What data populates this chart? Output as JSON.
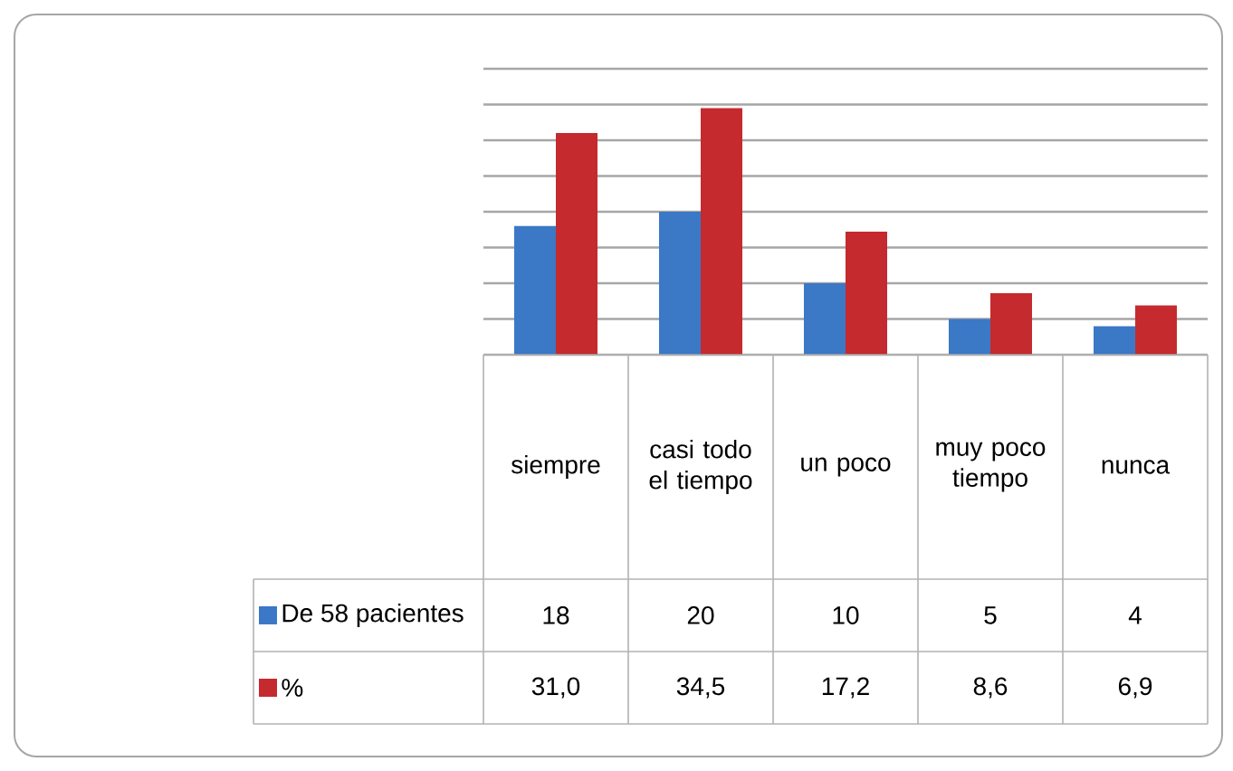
{
  "chart_data": {
    "type": "bar",
    "categories": [
      "siempre",
      "casi todo el tiempo",
      "un poco",
      "muy poco tiempo",
      "nunca"
    ],
    "series": [
      {
        "name": "De 58 pacientes",
        "color": "#3b78c6",
        "values": [
          18,
          20,
          10,
          5,
          4
        ],
        "value_labels": [
          "18",
          "20",
          "10",
          "5",
          "4"
        ]
      },
      {
        "name": "%",
        "color": "#c42a2e",
        "values": [
          31.0,
          34.5,
          17.2,
          8.6,
          6.9
        ],
        "value_labels": [
          "31,0",
          "34,5",
          "17,2",
          "8,6",
          "6,9"
        ]
      }
    ],
    "ylim": [
      0,
      40
    ],
    "yticks": [
      {
        "value": 0,
        "label": null
      },
      {
        "value": 5,
        "label": null
      },
      {
        "value": 10,
        "label": null
      },
      {
        "value": 15,
        "label": null
      },
      {
        "value": 20,
        "label": null
      },
      {
        "value": 25,
        "label": null
      },
      {
        "value": 30,
        "label": null
      },
      {
        "value": 35,
        "label": null
      },
      {
        "value": 40,
        "label": null
      }
    ],
    "grid": "y",
    "legend": "bottom left",
    "tick_labels": "x"
  }
}
